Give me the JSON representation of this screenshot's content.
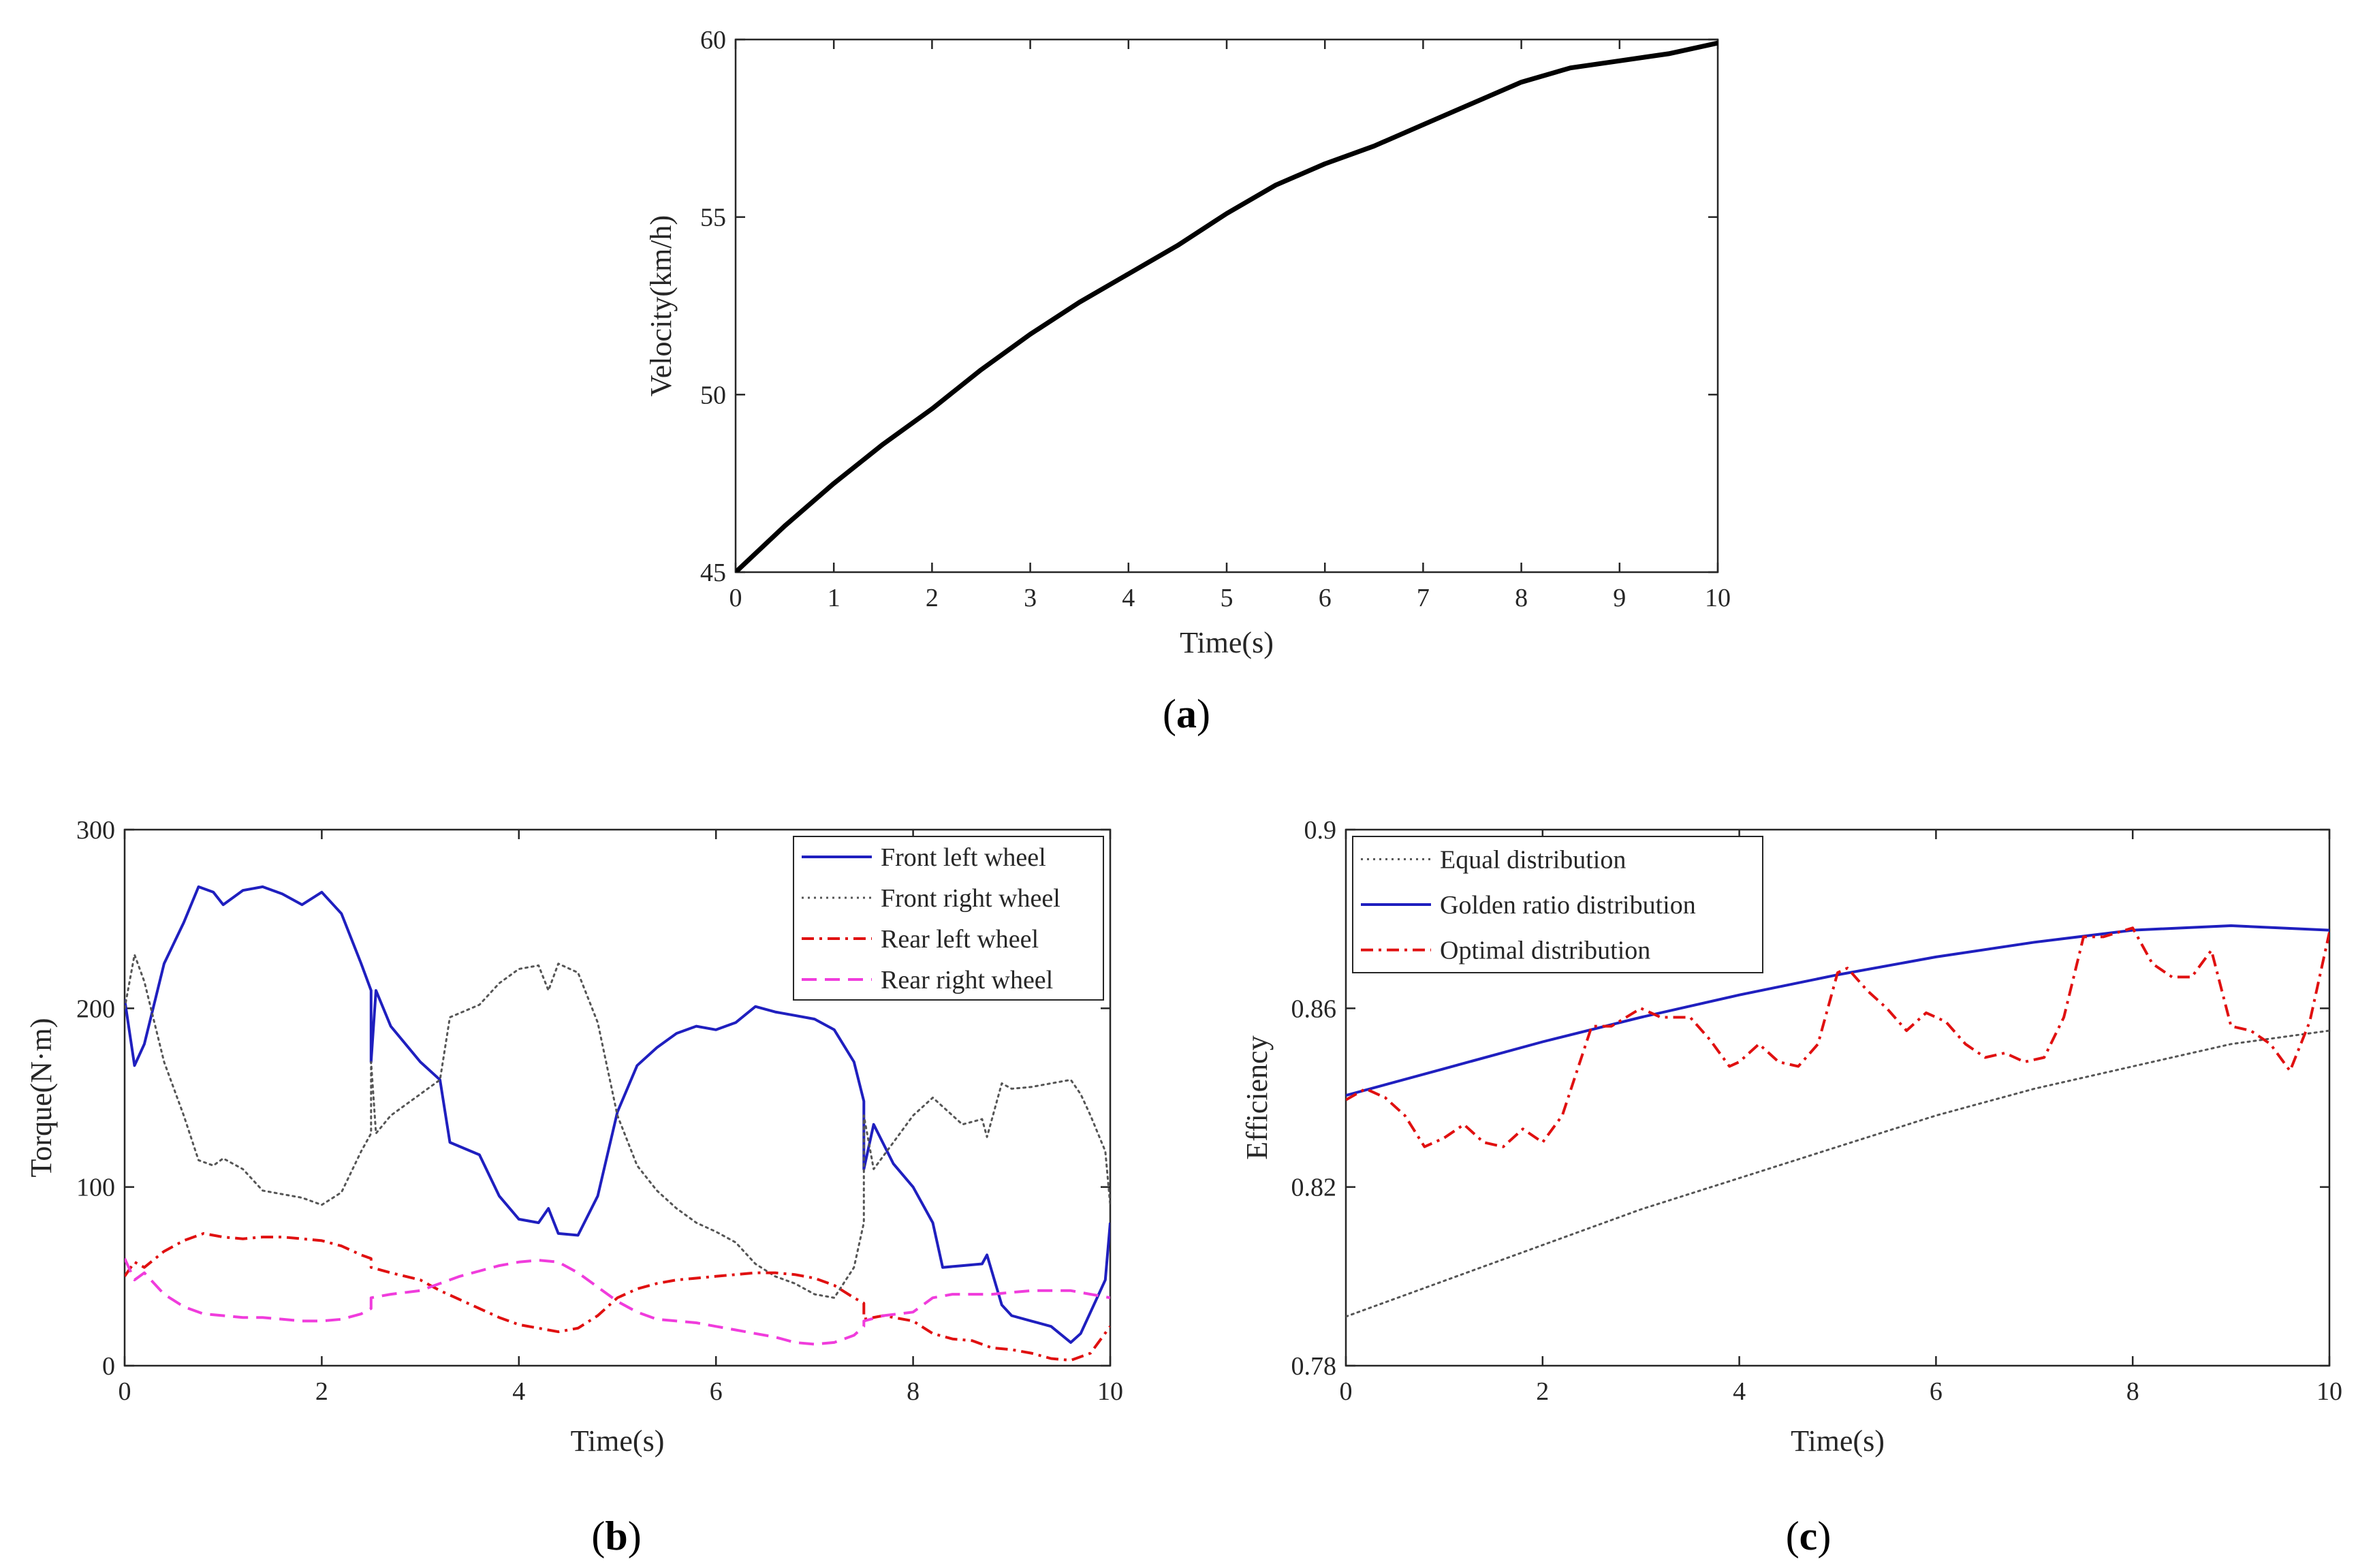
{
  "chart_data": [
    {
      "id": "a",
      "caption": "a",
      "type": "line",
      "xlabel": "Time(s)",
      "ylabel": "Velocity(km/h)",
      "xlim": [
        0,
        10
      ],
      "ylim": [
        45,
        60
      ],
      "xticks": [
        0,
        1,
        2,
        3,
        4,
        5,
        6,
        7,
        8,
        9,
        10
      ],
      "yticks": [
        45,
        50,
        55,
        60
      ],
      "grid": false,
      "series": [
        {
          "name": "Velocity",
          "color": "#000000",
          "style": "solid",
          "x": [
            0,
            0.5,
            1,
            1.5,
            2,
            2.5,
            3,
            3.5,
            4,
            4.5,
            5,
            5.5,
            6,
            6.5,
            7,
            7.5,
            8,
            8.5,
            9,
            9.5,
            10
          ],
          "y": [
            45.0,
            46.3,
            47.5,
            48.6,
            49.6,
            50.7,
            51.7,
            52.6,
            53.4,
            54.2,
            55.1,
            55.9,
            56.5,
            57.0,
            57.6,
            58.2,
            58.8,
            59.2,
            59.4,
            59.6,
            59.9
          ]
        }
      ]
    },
    {
      "id": "b",
      "caption": "b",
      "type": "line",
      "xlabel": "Time(s)",
      "ylabel": "Torque(N·m)",
      "xlim": [
        0,
        10
      ],
      "ylim": [
        0,
        300
      ],
      "xticks": [
        0,
        2,
        4,
        6,
        8,
        10
      ],
      "yticks": [
        0,
        100,
        200,
        300
      ],
      "grid": false,
      "legend": "top-right",
      "series": [
        {
          "name": "Front left wheel",
          "color": "#1f1fbf",
          "style": "solid",
          "x": [
            0,
            0.1,
            0.2,
            0.4,
            0.6,
            0.75,
            0.9,
            1.0,
            1.2,
            1.4,
            1.6,
            1.8,
            2.0,
            2.2,
            2.4,
            2.5,
            2.5,
            2.55,
            2.7,
            3.0,
            3.2,
            3.3,
            3.6,
            3.8,
            4.0,
            4.2,
            4.3,
            4.4,
            4.6,
            4.8,
            5.0,
            5.2,
            5.4,
            5.6,
            5.8,
            6.0,
            6.2,
            6.4,
            6.6,
            6.8,
            7.0,
            7.2,
            7.4,
            7.5,
            7.5,
            7.6,
            7.8,
            8.0,
            8.2,
            8.3,
            8.5,
            8.7,
            8.75,
            8.9,
            9.0,
            9.2,
            9.4,
            9.6,
            9.7,
            9.8,
            9.95,
            10.0
          ],
          "y": [
            205,
            168,
            180,
            225,
            248,
            268,
            265,
            258,
            266,
            268,
            264,
            258,
            265,
            253,
            225,
            210,
            170,
            210,
            190,
            170,
            160,
            125,
            118,
            95,
            82,
            80,
            88,
            74,
            73,
            95,
            142,
            168,
            178,
            186,
            190,
            188,
            192,
            201,
            198,
            196,
            194,
            188,
            170,
            148,
            110,
            135,
            113,
            100,
            80,
            55,
            56,
            57,
            62,
            34,
            28,
            25,
            22,
            13,
            18,
            30,
            48,
            80
          ]
        },
        {
          "name": "Front right wheel",
          "color": "#555555",
          "style": "dotted",
          "x": [
            0,
            0.1,
            0.2,
            0.4,
            0.6,
            0.75,
            0.9,
            1.0,
            1.2,
            1.4,
            1.6,
            1.8,
            2.0,
            2.2,
            2.4,
            2.5,
            2.5,
            2.55,
            2.7,
            3.0,
            3.2,
            3.3,
            3.6,
            3.8,
            4.0,
            4.2,
            4.3,
            4.4,
            4.6,
            4.8,
            5.0,
            5.2,
            5.4,
            5.6,
            5.8,
            6.0,
            6.2,
            6.4,
            6.6,
            6.8,
            7.0,
            7.2,
            7.4,
            7.5,
            7.5,
            7.6,
            7.8,
            8.0,
            8.2,
            8.3,
            8.5,
            8.7,
            8.75,
            8.9,
            9.0,
            9.2,
            9.4,
            9.6,
            9.7,
            9.8,
            9.95,
            10.0
          ],
          "y": [
            200,
            230,
            215,
            170,
            140,
            115,
            112,
            116,
            110,
            98,
            96,
            94,
            90,
            97,
            120,
            130,
            170,
            130,
            140,
            152,
            160,
            195,
            202,
            214,
            222,
            224,
            210,
            225,
            220,
            192,
            140,
            112,
            98,
            88,
            80,
            75,
            69,
            57,
            50,
            46,
            40,
            38,
            55,
            80,
            140,
            110,
            125,
            140,
            150,
            145,
            135,
            138,
            128,
            158,
            155,
            156,
            158,
            160,
            152,
            140,
            120,
            90
          ]
        },
        {
          "name": "Rear left wheel",
          "color": "#e01010",
          "style": "dashdot",
          "x": [
            0,
            0.1,
            0.2,
            0.4,
            0.6,
            0.8,
            1.0,
            1.2,
            1.4,
            1.6,
            1.8,
            2.0,
            2.2,
            2.4,
            2.5,
            2.5,
            2.7,
            3.0,
            3.2,
            3.4,
            3.6,
            3.8,
            4.0,
            4.2,
            4.4,
            4.6,
            4.8,
            5.0,
            5.2,
            5.4,
            5.6,
            5.8,
            6.0,
            6.2,
            6.4,
            6.6,
            6.8,
            7.0,
            7.2,
            7.4,
            7.5,
            7.5,
            7.7,
            8.0,
            8.2,
            8.4,
            8.6,
            8.8,
            9.0,
            9.2,
            9.4,
            9.6,
            9.8,
            10.0
          ],
          "y": [
            50,
            58,
            55,
            64,
            70,
            74,
            72,
            71,
            72,
            72,
            71,
            70,
            67,
            62,
            60,
            55,
            52,
            48,
            42,
            37,
            32,
            27,
            23,
            21,
            19,
            21,
            28,
            38,
            43,
            46,
            48,
            49,
            50,
            51,
            52,
            52,
            51,
            49,
            45,
            38,
            35,
            26,
            28,
            25,
            18,
            15,
            14,
            10,
            9,
            7,
            4,
            3,
            7,
            22
          ]
        },
        {
          "name": "Rear right wheel",
          "color": "#f03cdc",
          "style": "dashed",
          "x": [
            0,
            0.1,
            0.2,
            0.4,
            0.6,
            0.8,
            1.0,
            1.2,
            1.4,
            1.6,
            1.8,
            2.0,
            2.2,
            2.4,
            2.5,
            2.5,
            2.7,
            3.0,
            3.2,
            3.4,
            3.6,
            3.8,
            4.0,
            4.2,
            4.4,
            4.6,
            4.8,
            5.0,
            5.2,
            5.4,
            5.6,
            5.8,
            6.0,
            6.2,
            6.4,
            6.6,
            6.8,
            7.0,
            7.2,
            7.4,
            7.5,
            7.5,
            7.7,
            8.0,
            8.2,
            8.4,
            8.6,
            8.8,
            9.0,
            9.2,
            9.4,
            9.6,
            9.8,
            10.0
          ],
          "y": [
            60,
            48,
            52,
            40,
            33,
            29,
            28,
            27,
            27,
            26,
            25,
            25,
            26,
            29,
            32,
            38,
            40,
            42,
            46,
            50,
            53,
            56,
            58,
            59,
            58,
            52,
            44,
            36,
            30,
            26,
            25,
            24,
            22,
            20,
            18,
            16,
            13,
            12,
            13,
            17,
            22,
            25,
            28,
            30,
            38,
            40,
            40,
            40,
            41,
            42,
            42,
            42,
            40,
            38
          ]
        }
      ]
    },
    {
      "id": "c",
      "caption": "c",
      "type": "line",
      "xlabel": "Time(s)",
      "ylabel": "Efficiency",
      "xlim": [
        0,
        10
      ],
      "ylim": [
        0.78,
        0.9
      ],
      "xticks": [
        0,
        2,
        4,
        6,
        8,
        10
      ],
      "yticks": [
        0.78,
        0.82,
        0.86,
        0.9
      ],
      "grid": false,
      "legend": "top-left",
      "series": [
        {
          "name": "Equal distribution",
          "color": "#555555",
          "style": "dotted",
          "x": [
            0,
            1,
            2,
            3,
            4,
            5,
            6,
            7,
            8,
            9,
            10
          ],
          "y": [
            0.791,
            0.799,
            0.807,
            0.815,
            0.822,
            0.829,
            0.836,
            0.842,
            0.847,
            0.852,
            0.855
          ]
        },
        {
          "name": "Golden ratio distribution",
          "color": "#1f1fbf",
          "style": "solid",
          "x": [
            0,
            1,
            2,
            3,
            4,
            5,
            6,
            7,
            8,
            9,
            10
          ],
          "y": [
            0.8405,
            0.8465,
            0.8525,
            0.858,
            0.863,
            0.8675,
            0.8715,
            0.8748,
            0.8775,
            0.8785,
            0.8775
          ]
        },
        {
          "name": "Optimal distribution",
          "color": "#e01010",
          "style": "dashdot",
          "x": [
            0,
            0.2,
            0.4,
            0.6,
            0.8,
            1.0,
            1.2,
            1.4,
            1.6,
            1.8,
            2.0,
            2.2,
            2.5,
            2.7,
            3.0,
            3.2,
            3.5,
            3.7,
            3.9,
            4.0,
            4.2,
            4.4,
            4.6,
            4.8,
            5.0,
            5.1,
            5.3,
            5.5,
            5.7,
            5.9,
            6.1,
            6.3,
            6.5,
            6.7,
            6.9,
            7.1,
            7.3,
            7.5,
            7.7,
            8.0,
            8.2,
            8.4,
            8.6,
            8.8,
            9.0,
            9.2,
            9.4,
            9.6,
            9.8,
            10.0
          ],
          "y": [
            0.8395,
            0.842,
            0.84,
            0.836,
            0.829,
            0.831,
            0.834,
            0.83,
            0.829,
            0.833,
            0.83,
            0.836,
            0.856,
            0.856,
            0.86,
            0.858,
            0.858,
            0.853,
            0.847,
            0.848,
            0.852,
            0.848,
            0.847,
            0.852,
            0.868,
            0.869,
            0.864,
            0.86,
            0.855,
            0.859,
            0.857,
            0.852,
            0.849,
            0.85,
            0.848,
            0.849,
            0.858,
            0.876,
            0.876,
            0.878,
            0.87,
            0.867,
            0.867,
            0.873,
            0.856,
            0.855,
            0.852,
            0.846,
            0.857,
            0.877
          ]
        }
      ]
    }
  ]
}
